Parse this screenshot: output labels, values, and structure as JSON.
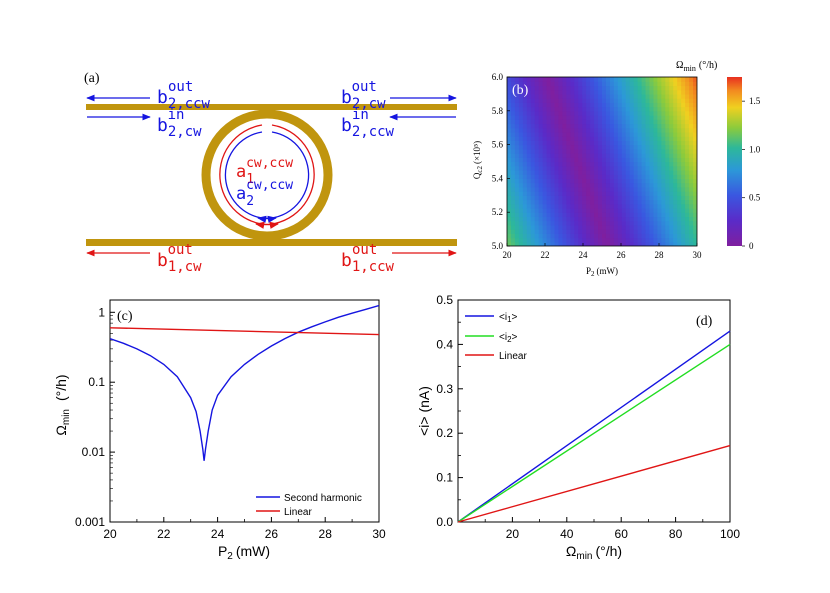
{
  "colors": {
    "gold": "#C0950E",
    "blue": "#1515E0",
    "red": "#E01515",
    "green": "#22DD22",
    "black": "#000000"
  },
  "panel_a": {
    "label": "(a)",
    "ring_label": {
      "a1": "a",
      "a1_sub": "1",
      "a1_sup": "cw,ccw",
      "a2": "a",
      "a2_sub": "2",
      "a2_sup": "cw,ccw"
    },
    "top_left_out": {
      "base": "b",
      "sub": "2,ccw",
      "sup": "out"
    },
    "top_right_out": {
      "base": "b",
      "sub": "2,cw",
      "sup": "out"
    },
    "top_left_in": {
      "base": "b",
      "sub": "2,cw",
      "sup": "in"
    },
    "top_right_in": {
      "base": "b",
      "sub": "2,ccw",
      "sup": "in"
    },
    "bottom_left_out": {
      "base": "b",
      "sub": "1,cw",
      "sup": "out"
    },
    "bottom_right_out": {
      "base": "b",
      "sub": "1,ccw",
      "sup": "out"
    }
  },
  "chart_data": [
    {
      "id": "b",
      "type": "heatmap",
      "panel_label": "(b)",
      "title": "Ω",
      "title_sub": "min",
      "title_unit": "(°/h)",
      "xlabel": "P",
      "xlabel_sub": "2",
      "xlabel_unit": "(mW)",
      "ylabel": "Q",
      "ylabel_sub": "c2",
      "ylabel_unit": "(×10⁵)",
      "xlim": [
        20,
        30
      ],
      "ylim": [
        5.0,
        6.0
      ],
      "xticks": [
        "20",
        "22",
        "24",
        "26",
        "28",
        "30"
      ],
      "yticks": [
        "5.0",
        "5.2",
        "5.4",
        "5.6",
        "5.8",
        "6.0"
      ],
      "colorbar_ticks": [
        "0",
        "0.5",
        "1.0",
        "1.5"
      ],
      "colorbar_range": [
        0,
        1.75
      ],
      "minimum_valley": [
        {
          "x": 22.1,
          "y": 6.0
        },
        {
          "x": 25.3,
          "y": 5.0
        }
      ]
    },
    {
      "id": "c",
      "type": "line",
      "panel_label": "(c)",
      "xlabel": "P",
      "xlabel_sub": "2",
      "xlabel_unit": "(mW)",
      "ylabel": "Ω",
      "ylabel_sub": "min",
      "ylabel_unit": "(°/h)",
      "yscale": "log",
      "xlim": [
        20,
        30
      ],
      "ylim": [
        0.001,
        1.5
      ],
      "xticks": [
        "20",
        "22",
        "24",
        "26",
        "28",
        "30"
      ],
      "yticks": [
        "0.001",
        "0.01",
        "0.1",
        "1"
      ],
      "legend_position": "bottom-right",
      "series": [
        {
          "name": "Second harmonic",
          "color": "blue",
          "x": [
            20,
            20.5,
            21,
            21.5,
            22,
            22.5,
            23,
            23.2,
            23.35,
            23.45,
            23.5,
            23.55,
            23.65,
            23.8,
            24,
            24.5,
            25,
            25.5,
            26,
            26.5,
            27,
            27.5,
            28,
            28.5,
            29,
            29.5,
            30
          ],
          "values": [
            0.42,
            0.36,
            0.3,
            0.24,
            0.18,
            0.12,
            0.06,
            0.038,
            0.02,
            0.011,
            0.0075,
            0.011,
            0.02,
            0.04,
            0.065,
            0.12,
            0.18,
            0.25,
            0.33,
            0.42,
            0.52,
            0.62,
            0.73,
            0.85,
            0.97,
            1.1,
            1.25
          ]
        },
        {
          "name": "Linear",
          "color": "red",
          "x": [
            20,
            30
          ],
          "values": [
            0.6,
            0.48
          ]
        }
      ]
    },
    {
      "id": "d",
      "type": "line",
      "panel_label": "(d)",
      "xlabel": "Ω",
      "xlabel_sub": "min",
      "xlabel_unit": "(°/h)",
      "ylabel": "<i> (nA)",
      "xlim": [
        0,
        100
      ],
      "ylim": [
        0,
        0.5
      ],
      "xticks": [
        "20",
        "40",
        "60",
        "80",
        "100"
      ],
      "yticks": [
        "0.0",
        "0.1",
        "0.2",
        "0.3",
        "0.4",
        "0.5"
      ],
      "legend_position": "top-left",
      "series": [
        {
          "name": "<i",
          "name_sub": "1",
          "name_end": ">",
          "color": "blue",
          "x": [
            0,
            100
          ],
          "values": [
            0,
            0.43
          ]
        },
        {
          "name": "<i",
          "name_sub": "2",
          "name_end": ">",
          "color": "green",
          "x": [
            0,
            100
          ],
          "values": [
            0,
            0.4
          ]
        },
        {
          "name": "Linear",
          "name_sub": "",
          "name_end": "",
          "color": "red",
          "x": [
            0,
            100
          ],
          "values": [
            0,
            0.172
          ]
        }
      ]
    }
  ]
}
